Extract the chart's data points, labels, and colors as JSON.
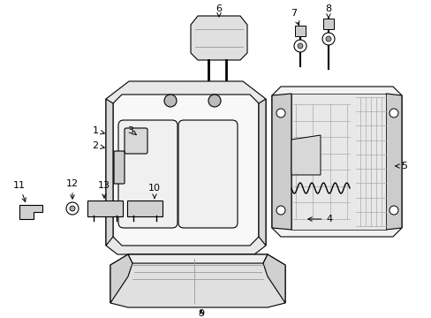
{
  "bg_color": "#ffffff",
  "line_color": "#000000",
  "figsize": [
    4.89,
    3.6
  ],
  "dpi": 100,
  "label_fs": 8,
  "parts": {
    "seat_back_outer": {
      "fc": "#e0e0e0",
      "ec": "#000000"
    },
    "seat_back_inner": {
      "fc": "#f5f5f5",
      "ec": "#000000"
    },
    "seat_pad": {
      "fc": "#ebebeb",
      "ec": "#000000"
    },
    "frame_outer": {
      "fc": "#f0f0f0",
      "ec": "#000000"
    },
    "frame_inner": {
      "fc": "#e8e8e8",
      "ec": "#000000"
    },
    "headrest": {
      "fc": "#e0e0e0",
      "ec": "#000000"
    },
    "seat_cushion": {
      "fc": "#e2e2e2",
      "ec": "#000000"
    },
    "small_parts": {
      "fc": "#d8d8d8",
      "ec": "#000000"
    }
  }
}
